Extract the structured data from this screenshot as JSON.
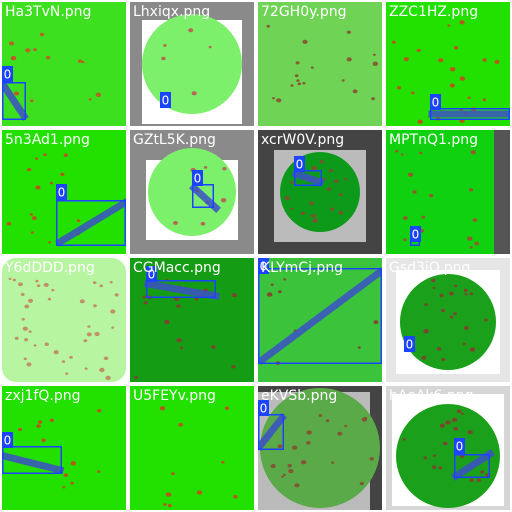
{
  "tiles": [
    {
      "filename": "Ha3TvN.png",
      "background": "#3ce01e",
      "border": "#ffffff",
      "disk": false,
      "disk_color": "#3ce01e",
      "spot_color": "#c8502a",
      "spots": 14,
      "seed": 11,
      "box": true,
      "box_label": "0",
      "stripe": true
    },
    {
      "filename": "Lhxiqx.png",
      "background": "#8a8a8a",
      "border": "#ffffff",
      "disk": true,
      "disk_color": "#7cf06a",
      "spot_color": "#c05050",
      "spots": 6,
      "seed": 23,
      "box": true,
      "box_label": "0",
      "stripe": false
    },
    {
      "filename": "72GH0y.png",
      "background": "#6fd455",
      "border": "#6fd455",
      "disk": false,
      "disk_color": "#6fd455",
      "spot_color": "#8a4a30",
      "spots": 18,
      "seed": 37,
      "box": false,
      "box_label": "",
      "stripe": false
    },
    {
      "filename": "ZZC1HZ.png",
      "background": "#22e000",
      "border": "#ffffff",
      "disk": false,
      "disk_color": "#22e000",
      "spot_color": "#d04020",
      "spots": 22,
      "seed": 41,
      "box": true,
      "box_label": "0",
      "stripe": true
    },
    {
      "filename": "5n3Ad1.png",
      "background": "#22e000",
      "border": "#ffffff",
      "disk": false,
      "disk_color": "#22e000",
      "spot_color": "#d04020",
      "spots": 14,
      "seed": 53,
      "box": true,
      "box_label": "0",
      "stripe": true
    },
    {
      "filename": "GZtL5K.png",
      "background": "#8a8a8a",
      "border": "#ffffff",
      "disk": true,
      "disk_color": "#7cf06a",
      "spot_color": "#c05050",
      "spots": 8,
      "seed": 61,
      "box": true,
      "box_label": "0",
      "stripe": true
    },
    {
      "filename": "xcrW0V.png",
      "background": "#444444",
      "border": "#bbbbbb",
      "disk": true,
      "disk_color": "#0d9a1a",
      "spot_color": "#8a4a30",
      "spots": 20,
      "seed": 71,
      "box": true,
      "box_label": "0",
      "stripe": true
    },
    {
      "filename": "MPTnQ1.png",
      "background": "#555555",
      "border": "#0fd10f",
      "disk": false,
      "disk_color": "#0fd10f",
      "spot_color": "#a84a30",
      "spots": 16,
      "seed": 83,
      "box": true,
      "box_label": "0",
      "stripe": false
    },
    {
      "filename": "Y6dDDD.png",
      "background": "#ffffff",
      "border": "#b8f5a0",
      "disk": false,
      "disk_color": "#b8f5a0",
      "spot_color": "#c08060",
      "spots": 40,
      "seed": 97,
      "box": false,
      "box_label": "",
      "stripe": false
    },
    {
      "filename": "CGMacc.png",
      "background": "#159c15",
      "border": "#159c15",
      "disk": false,
      "disk_color": "#159c15",
      "spot_color": "#8a3a30",
      "spots": 18,
      "seed": 101,
      "box": true,
      "box_label": "0",
      "stripe": true
    },
    {
      "filename": "KLYmCj.png",
      "background": "#3bc43b",
      "border": "#3bc43b",
      "disk": false,
      "disk_color": "#3bc43b",
      "spot_color": "#8a3a30",
      "spots": 8,
      "seed": 113,
      "box": true,
      "box_label": "0",
      "stripe": true
    },
    {
      "filename": "Gsd3iO.png",
      "background": "#e6e6e6",
      "border": "#ffffff",
      "disk": true,
      "disk_color": "#1aa01a",
      "spot_color": "#8a3a30",
      "spots": 22,
      "seed": 127,
      "box": true,
      "box_label": "0",
      "stripe": false
    },
    {
      "filename": "zxj1fQ.png",
      "background": "#22e000",
      "border": "#ffffff",
      "disk": false,
      "disk_color": "#22e000",
      "spot_color": "#d04020",
      "spots": 12,
      "seed": 131,
      "box": true,
      "box_label": "0",
      "stripe": true
    },
    {
      "filename": "U5FEYv.png",
      "background": "#22e000",
      "border": "#ffffff",
      "disk": false,
      "disk_color": "#22e000",
      "spot_color": "#d04020",
      "spots": 10,
      "seed": 139,
      "box": false,
      "box_label": "",
      "stripe": false
    },
    {
      "filename": "eKVSb.png",
      "background": "#444444",
      "border": "#bbbbbb",
      "disk": true,
      "disk_color": "#5aaa4a",
      "spot_color": "#8a4a30",
      "spots": 20,
      "seed": 149,
      "box": true,
      "box_label": "0",
      "stripe": true
    },
    {
      "filename": "hAeAk6.png",
      "background": "#d6d6d6",
      "border": "#ffffff",
      "disk": true,
      "disk_color": "#1aa01a",
      "spot_color": "#8a3a30",
      "spots": 18,
      "seed": 157,
      "box": true,
      "box_label": "0",
      "stripe": true
    }
  ],
  "colors": {
    "box_stroke": "#1a44ff",
    "box_label_bg": "#1a44ff",
    "box_label_text": "#ffffff",
    "stripe": "#3c50c8",
    "filename_text": "#ffffff"
  }
}
